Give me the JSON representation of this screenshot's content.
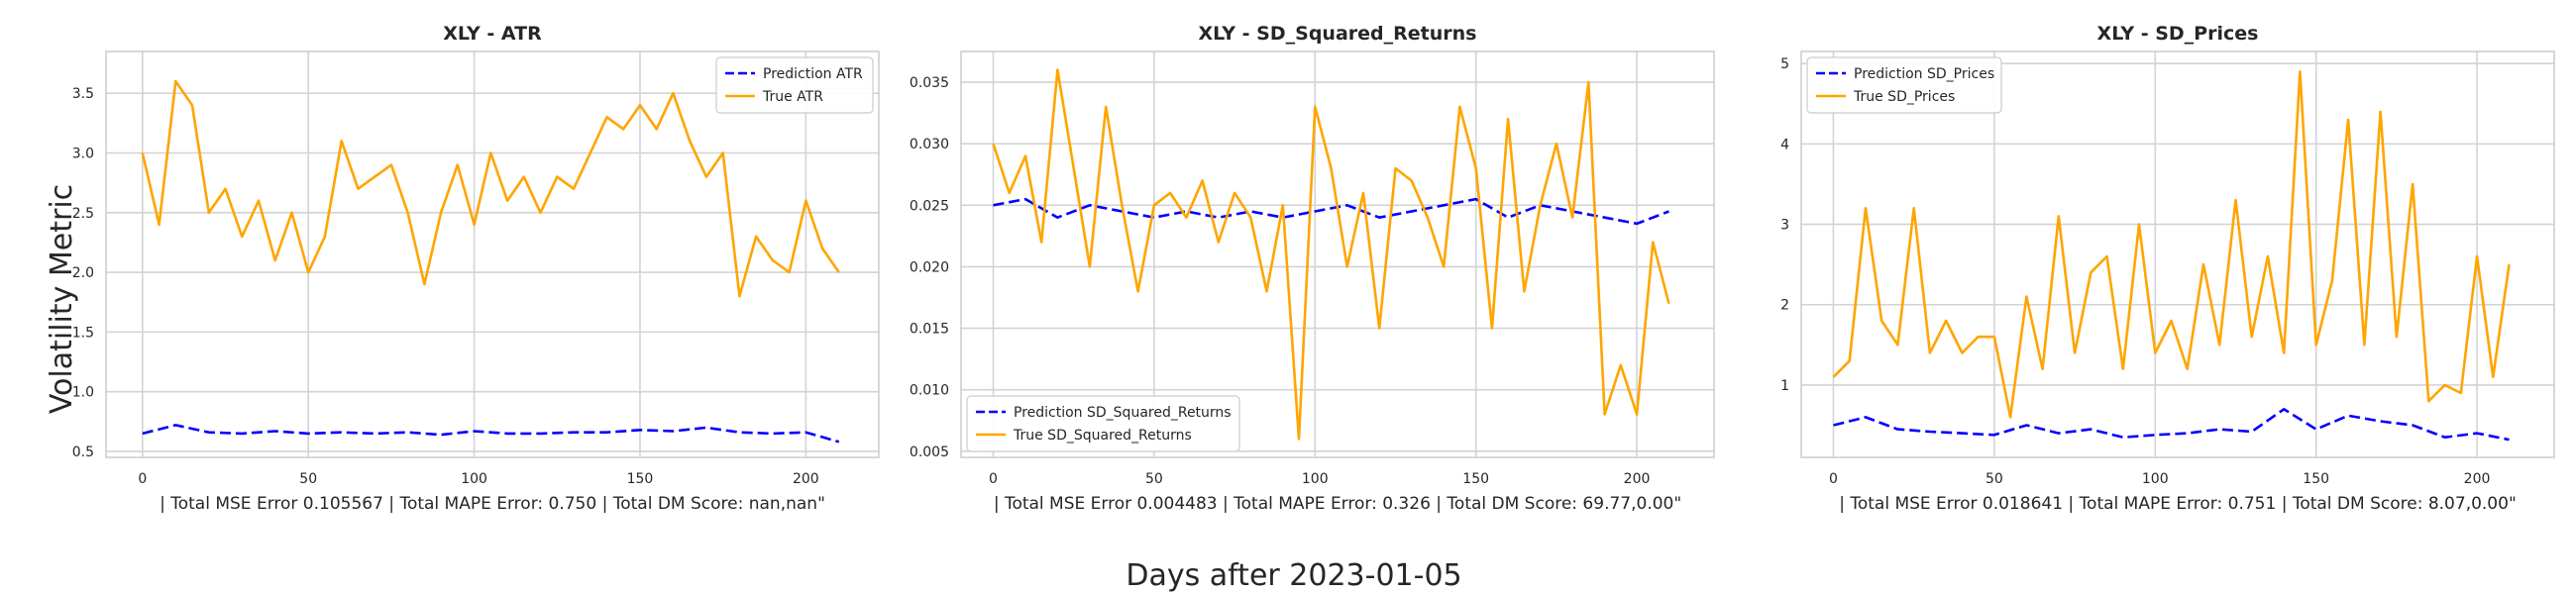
{
  "figure": {
    "ylabel": "Volatility Metric",
    "xlabel": "Days after 2023-01-05"
  },
  "colors": {
    "prediction": "#0000ff",
    "truth": "#ffa500",
    "grid": "#d3d3d3",
    "frame": "#cccccc"
  },
  "chart_data": [
    {
      "type": "line",
      "title": "XLY - ATR",
      "xlabel": "| Total MSE Error 0.105567 | Total MAPE Error: 0.750 | Total DM Score: nan,nan\"",
      "xlim": [
        -11,
        222
      ],
      "ylim": [
        0.45,
        3.85
      ],
      "xticks": [
        0,
        50,
        100,
        150,
        200
      ],
      "yticks": [
        0.5,
        1.0,
        1.5,
        2.0,
        2.5,
        3.0,
        3.5
      ],
      "ytick_labels": [
        "0.5",
        "1.0",
        "1.5",
        "2.0",
        "2.5",
        "3.0",
        "3.5"
      ],
      "legend_position": "top-right",
      "series": [
        {
          "name": "Prediction ATR",
          "style": "dashed",
          "color": "#0000ff",
          "x": [
            0,
            10,
            20,
            30,
            40,
            50,
            60,
            70,
            80,
            90,
            100,
            110,
            120,
            130,
            140,
            150,
            160,
            170,
            180,
            190,
            200,
            210
          ],
          "values": [
            0.65,
            0.72,
            0.66,
            0.65,
            0.67,
            0.65,
            0.66,
            0.65,
            0.66,
            0.64,
            0.67,
            0.65,
            0.65,
            0.66,
            0.66,
            0.68,
            0.67,
            0.7,
            0.66,
            0.65,
            0.66,
            0.58
          ]
        },
        {
          "name": "True ATR",
          "style": "solid",
          "color": "#ffa500",
          "x": [
            0,
            5,
            10,
            15,
            20,
            25,
            30,
            35,
            40,
            45,
            50,
            55,
            60,
            65,
            70,
            75,
            80,
            85,
            90,
            95,
            100,
            105,
            110,
            115,
            120,
            125,
            130,
            135,
            140,
            145,
            150,
            155,
            160,
            165,
            170,
            175,
            180,
            185,
            190,
            195,
            200,
            205,
            210
          ],
          "values": [
            3.0,
            2.4,
            3.6,
            3.4,
            2.5,
            2.7,
            2.3,
            2.6,
            2.1,
            2.5,
            2.0,
            2.3,
            3.1,
            2.7,
            2.8,
            2.9,
            2.5,
            1.9,
            2.5,
            2.9,
            2.4,
            3.0,
            2.6,
            2.8,
            2.5,
            2.8,
            2.7,
            3.0,
            3.3,
            3.2,
            3.4,
            3.2,
            3.5,
            3.1,
            2.8,
            3.0,
            1.8,
            2.3,
            2.1,
            2.0,
            2.6,
            2.2,
            2.0
          ]
        }
      ]
    },
    {
      "type": "line",
      "title": "XLY - SD_Squared_Returns",
      "xlabel": "| Total MSE Error 0.004483 | Total MAPE Error: 0.326 | Total DM Score: 69.77,0.00\"",
      "xlim": [
        -10,
        224
      ],
      "ylim": [
        0.0045,
        0.0375
      ],
      "xticks": [
        0,
        50,
        100,
        150,
        200
      ],
      "yticks": [
        0.005,
        0.01,
        0.015,
        0.02,
        0.025,
        0.03,
        0.035
      ],
      "ytick_labels": [
        "0.005",
        "0.010",
        "0.015",
        "0.020",
        "0.025",
        "0.030",
        "0.035"
      ],
      "legend_position": "bottom-left",
      "series": [
        {
          "name": "Prediction SD_Squared_Returns",
          "style": "dashed",
          "color": "#0000ff",
          "x": [
            0,
            10,
            20,
            30,
            40,
            50,
            60,
            70,
            80,
            90,
            100,
            110,
            120,
            130,
            140,
            150,
            160,
            170,
            180,
            190,
            200,
            210
          ],
          "values": [
            0.025,
            0.0255,
            0.024,
            0.025,
            0.0245,
            0.024,
            0.0245,
            0.024,
            0.0245,
            0.024,
            0.0245,
            0.025,
            0.024,
            0.0245,
            0.025,
            0.0255,
            0.024,
            0.025,
            0.0245,
            0.024,
            0.0235,
            0.0245
          ]
        },
        {
          "name": "True SD_Squared_Returns",
          "style": "solid",
          "color": "#ffa500",
          "x": [
            0,
            5,
            10,
            15,
            20,
            25,
            30,
            35,
            40,
            45,
            50,
            55,
            60,
            65,
            70,
            75,
            80,
            85,
            90,
            95,
            100,
            105,
            110,
            115,
            120,
            125,
            130,
            135,
            140,
            145,
            150,
            155,
            160,
            165,
            170,
            175,
            180,
            185,
            190,
            195,
            200,
            205,
            210
          ],
          "values": [
            0.03,
            0.026,
            0.029,
            0.022,
            0.036,
            0.028,
            0.02,
            0.033,
            0.025,
            0.018,
            0.025,
            0.026,
            0.024,
            0.027,
            0.022,
            0.026,
            0.024,
            0.018,
            0.025,
            0.006,
            0.033,
            0.028,
            0.02,
            0.026,
            0.015,
            0.028,
            0.027,
            0.024,
            0.02,
            0.033,
            0.028,
            0.015,
            0.032,
            0.018,
            0.025,
            0.03,
            0.024,
            0.035,
            0.008,
            0.012,
            0.008,
            0.022,
            0.017
          ]
        }
      ]
    },
    {
      "type": "line",
      "title": "XLY - SD_Prices",
      "xlabel": "| Total MSE Error 0.018641 | Total MAPE Error: 0.751 | Total DM Score: 8.07,0.00\"",
      "xlim": [
        -10,
        224
      ],
      "ylim": [
        0.1,
        5.15
      ],
      "xticks": [
        0,
        50,
        100,
        150,
        200
      ],
      "yticks": [
        1,
        2,
        3,
        4,
        5
      ],
      "ytick_labels": [
        "1",
        "2",
        "3",
        "4",
        "5"
      ],
      "legend_position": "top-left",
      "series": [
        {
          "name": "Prediction SD_Prices",
          "style": "dashed",
          "color": "#0000ff",
          "x": [
            0,
            10,
            20,
            30,
            40,
            50,
            60,
            70,
            80,
            90,
            100,
            110,
            120,
            130,
            140,
            150,
            160,
            170,
            180,
            190,
            200,
            210
          ],
          "values": [
            0.5,
            0.6,
            0.45,
            0.42,
            0.4,
            0.38,
            0.5,
            0.4,
            0.45,
            0.35,
            0.38,
            0.4,
            0.45,
            0.42,
            0.7,
            0.45,
            0.62,
            0.55,
            0.5,
            0.35,
            0.4,
            0.32
          ]
        },
        {
          "name": "True SD_Prices",
          "style": "solid",
          "color": "#ffa500",
          "x": [
            0,
            5,
            10,
            15,
            20,
            25,
            30,
            35,
            40,
            45,
            50,
            55,
            60,
            65,
            70,
            75,
            80,
            85,
            90,
            95,
            100,
            105,
            110,
            115,
            120,
            125,
            130,
            135,
            140,
            145,
            150,
            155,
            160,
            165,
            170,
            175,
            180,
            185,
            190,
            195,
            200,
            205,
            210
          ],
          "values": [
            1.1,
            1.3,
            3.2,
            1.8,
            1.5,
            3.2,
            1.4,
            1.8,
            1.4,
            1.6,
            1.6,
            0.6,
            2.1,
            1.2,
            3.1,
            1.4,
            2.4,
            2.6,
            1.2,
            3.0,
            1.4,
            1.8,
            1.2,
            2.5,
            1.5,
            3.3,
            1.6,
            2.6,
            1.4,
            4.9,
            1.5,
            2.3,
            4.3,
            1.5,
            4.4,
            1.6,
            3.5,
            0.8,
            1.0,
            0.9,
            2.6,
            1.1,
            2.5
          ]
        }
      ]
    }
  ]
}
